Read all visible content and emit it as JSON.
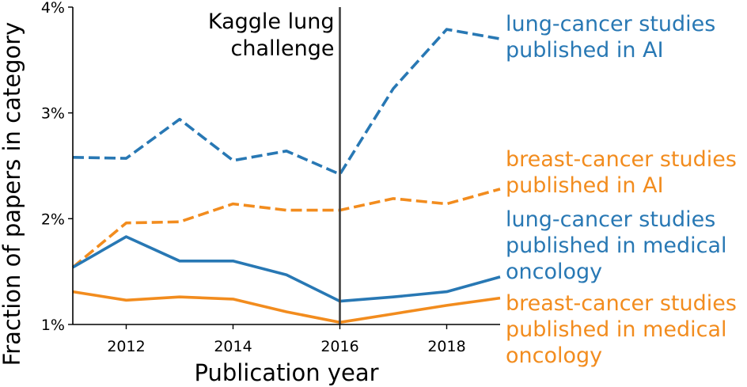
{
  "chart_data": {
    "type": "line",
    "title": "",
    "xlabel": "Publication year",
    "ylabel": "Fraction of papers in category",
    "xlim": [
      2011,
      2019
    ],
    "ylim": [
      1,
      4
    ],
    "x_ticks": [
      2012,
      2014,
      2016,
      2018
    ],
    "x_tick_labels": [
      "2012",
      "2014",
      "2016",
      "2018"
    ],
    "y_ticks": [
      1,
      2,
      3,
      4
    ],
    "y_tick_labels": [
      "1%",
      "2%",
      "3%",
      "4%"
    ],
    "grid": false,
    "legend": "right of plot, direct labels",
    "series": [
      {
        "name": "lung-cancer studies published in AI",
        "label_lines": [
          "lung-cancer studies",
          "published in AI"
        ],
        "color": "#2878b4",
        "style": "dashed",
        "x": [
          2011,
          2012,
          2013,
          2014,
          2015,
          2016,
          2017,
          2018,
          2019
        ],
        "values": [
          2.58,
          2.57,
          2.94,
          2.55,
          2.64,
          2.42,
          3.23,
          3.79,
          3.7
        ]
      },
      {
        "name": "breast-cancer studies published in AI",
        "label_lines": [
          "breast-cancer studies",
          "published in AI"
        ],
        "color": "#f28c1e",
        "style": "dashed",
        "x": [
          2011,
          2012,
          2013,
          2014,
          2015,
          2016,
          2017,
          2018,
          2019
        ],
        "values": [
          1.54,
          1.96,
          1.97,
          2.14,
          2.08,
          2.08,
          2.19,
          2.14,
          2.28
        ]
      },
      {
        "name": "lung-cancer studies published in medical oncology",
        "label_lines": [
          "lung-cancer studies",
          "published in medical",
          "oncology"
        ],
        "color": "#2878b4",
        "style": "solid",
        "x": [
          2011,
          2012,
          2013,
          2014,
          2015,
          2016,
          2017,
          2018,
          2019
        ],
        "values": [
          1.54,
          1.83,
          1.6,
          1.6,
          1.47,
          1.22,
          1.26,
          1.31,
          1.45
        ]
      },
      {
        "name": "breast-cancer studies published in medical oncology",
        "label_lines": [
          "breast-cancer studies",
          "published in medical",
          "oncology"
        ],
        "color": "#f28c1e",
        "style": "solid",
        "x": [
          2011,
          2012,
          2013,
          2014,
          2015,
          2016,
          2017,
          2018,
          2019
        ],
        "values": [
          1.31,
          1.23,
          1.26,
          1.24,
          1.12,
          1.02,
          1.1,
          1.18,
          1.25
        ]
      }
    ],
    "annotations": [
      {
        "type": "vline",
        "x": 2016,
        "color": "#404040",
        "text_lines": [
          "Kaggle lung",
          "challenge"
        ]
      }
    ]
  }
}
